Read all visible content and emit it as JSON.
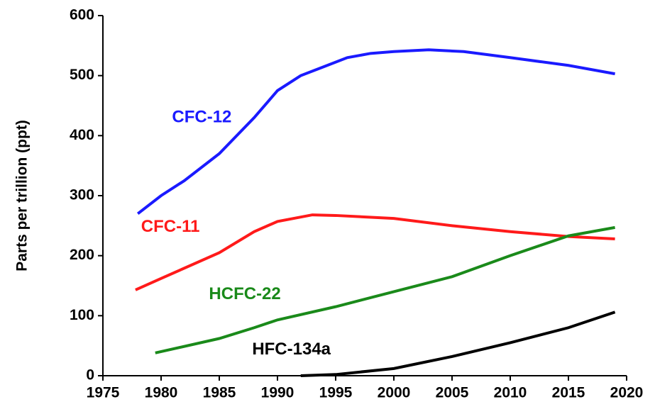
{
  "chart_data": {
    "type": "line",
    "ylabel": "Parts per trillion (ppt)",
    "xlim": [
      1975,
      2020
    ],
    "xticks": [
      1975,
      1980,
      1985,
      1990,
      1995,
      2000,
      2005,
      2010,
      2015,
      2020
    ],
    "ylim": [
      0,
      600
    ],
    "yticks": [
      0,
      100,
      200,
      300,
      400,
      500,
      600
    ],
    "grid": false,
    "series": [
      {
        "name": "CFC-12",
        "color": "#1a1aff",
        "x": [
          1978,
          1980,
          1982,
          1985,
          1988,
          1990,
          1992,
          1994,
          1996,
          1998,
          2000,
          2003,
          2006,
          2010,
          2015,
          2019
        ],
        "values": [
          270,
          300,
          325,
          370,
          430,
          475,
          500,
          515,
          530,
          537,
          540,
          543,
          540,
          530,
          517,
          503
        ]
      },
      {
        "name": "CFC-11",
        "color": "#ff1a1a",
        "x": [
          1977.8,
          1980,
          1985,
          1988,
          1990,
          1993,
          1995,
          2000,
          2005,
          2010,
          2015,
          2019
        ],
        "values": [
          143,
          162,
          205,
          240,
          257,
          268,
          267,
          262,
          250,
          240,
          232,
          228
        ]
      },
      {
        "name": "HCFC-22",
        "color": "#1a8a1a",
        "x": [
          1979.5,
          1985,
          1988,
          1990,
          1995,
          2000,
          2005,
          2010,
          2015,
          2019
        ],
        "values": [
          38,
          62,
          80,
          93,
          115,
          140,
          165,
          200,
          233,
          247
        ]
      },
      {
        "name": "HFC-134a",
        "color": "#000000",
        "x": [
          1992,
          1995,
          2000,
          2005,
          2010,
          2015,
          2019
        ],
        "values": [
          0,
          2,
          12,
          32,
          55,
          80,
          106
        ]
      }
    ]
  }
}
